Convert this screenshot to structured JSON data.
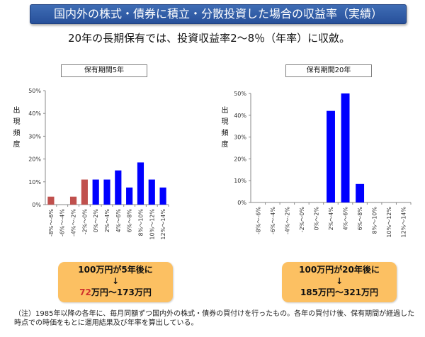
{
  "title": "国内外の株式・債券に積立・分散投資した場合の収益率（実績）",
  "subtitle": "20年の長期保有では、投資収益率2～8％（年率）に収斂。",
  "ylabel": "出現頻度",
  "colors": {
    "negative": "#c0504d",
    "positive": "#0000ff",
    "banner": "#2f5fa8",
    "callout": "#fcc062"
  },
  "chart_data": [
    {
      "type": "bar",
      "title": "保有期間5年",
      "ylabel": "出現頻度",
      "categories": [
        "-8%～-6%",
        "-6%～-4%",
        "-4%～-2%",
        "-2%～0%",
        "0%～2%",
        "2%～4%",
        "4%～6%",
        "6%～8%",
        "8%～10%",
        "10%～12%",
        "12%～14%"
      ],
      "values": [
        3.5,
        0,
        3.5,
        11,
        11,
        11,
        15,
        7.5,
        18.5,
        11,
        7.5
      ],
      "ylim": [
        0,
        50
      ],
      "yticks": [
        "0%",
        "10%",
        "20%",
        "30%",
        "40%",
        "50%"
      ],
      "grid": false
    },
    {
      "type": "bar",
      "title": "保有期間20年",
      "ylabel": "出現頻度",
      "categories": [
        "-8%～-6%",
        "-6%～-4%",
        "-4%～-2%",
        "-2%～0%",
        "0%～2%",
        "2%～4%",
        "4%～6%",
        "6%～8%",
        "8%～10%",
        "10%～12%",
        "12%～14%"
      ],
      "values": [
        0,
        0,
        0,
        0,
        0,
        42,
        50,
        8.5,
        0,
        0,
        0
      ],
      "ylim": [
        0,
        50
      ],
      "yticks": [
        "0%",
        "10%",
        "20%",
        "30%",
        "40%",
        "50%"
      ],
      "grid": false
    }
  ],
  "callouts": {
    "left": {
      "line1": "100万円が5年後に",
      "arrow": "↓",
      "value_red": "72",
      "value_rest": "万円～173万円"
    },
    "right": {
      "line1": "100万円が20年後に",
      "arrow": "↓",
      "value": "185万円～321万円"
    }
  },
  "note": "（注）1985年以降の各年に、毎月同額ずつ国内外の株式・債券の買付けを行ったもの。各年の買付け後、保有期間が経過した時点での時価をもとに運用結果及び年率を算出している。"
}
